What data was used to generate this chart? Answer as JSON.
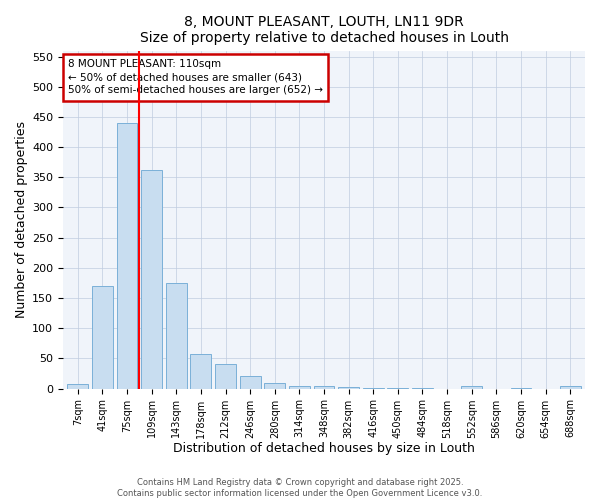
{
  "title": "8, MOUNT PLEASANT, LOUTH, LN11 9DR",
  "subtitle": "Size of property relative to detached houses in Louth",
  "xlabel": "Distribution of detached houses by size in Louth",
  "ylabel": "Number of detached properties",
  "bar_labels": [
    "7sqm",
    "41sqm",
    "75sqm",
    "109sqm",
    "143sqm",
    "178sqm",
    "212sqm",
    "246sqm",
    "280sqm",
    "314sqm",
    "348sqm",
    "382sqm",
    "416sqm",
    "450sqm",
    "484sqm",
    "518sqm",
    "552sqm",
    "586sqm",
    "620sqm",
    "654sqm",
    "688sqm"
  ],
  "bar_values": [
    8,
    170,
    440,
    362,
    175,
    57,
    40,
    21,
    10,
    5,
    4,
    2,
    1,
    1,
    1,
    0,
    4,
    0,
    1,
    0,
    4
  ],
  "bar_color": "#c8ddf0",
  "bar_edge_color": "#7ab0d8",
  "ylim": [
    0,
    560
  ],
  "yticks": [
    0,
    50,
    100,
    150,
    200,
    250,
    300,
    350,
    400,
    450,
    500,
    550
  ],
  "red_line_index": 3,
  "annotation_line1": "8 MOUNT PLEASANT: 110sqm",
  "annotation_line2": "← 50% of detached houses are smaller (643)",
  "annotation_line3": "50% of semi-detached houses are larger (652) →",
  "annotation_border_color": "#cc0000",
  "footer_line1": "Contains HM Land Registry data © Crown copyright and database right 2025.",
  "footer_line2": "Contains public sector information licensed under the Open Government Licence v3.0.",
  "bg_color": "#ffffff",
  "plot_bg_color": "#f0f4fa",
  "grid_color": "#c0cce0"
}
